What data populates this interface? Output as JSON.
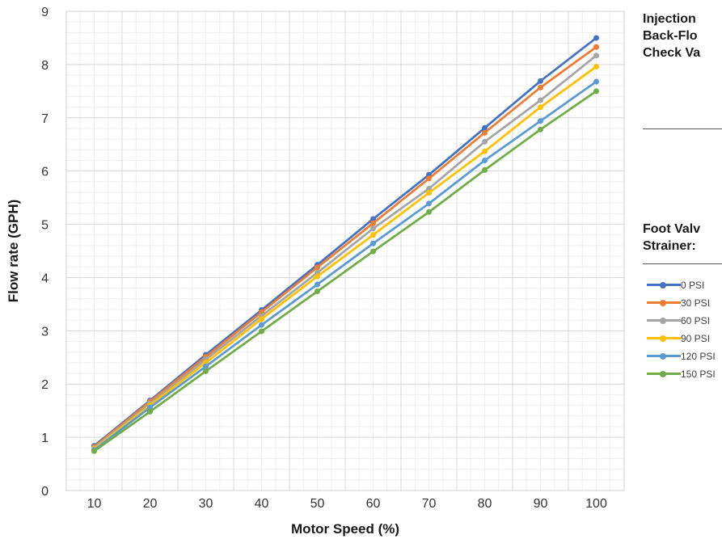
{
  "chart_data": {
    "type": "line",
    "title": "",
    "xlabel": "Motor Speed (%)",
    "ylabel": "Flow rate (GPH)",
    "categories": [
      10,
      20,
      30,
      40,
      50,
      60,
      70,
      80,
      90,
      100
    ],
    "ylim": [
      0,
      9
    ],
    "yticks": [
      0,
      1,
      2,
      3,
      4,
      5,
      6,
      7,
      8,
      9
    ],
    "grid": true,
    "legend_position": "right",
    "series": [
      {
        "name": "0 PSI",
        "color": "#4472C4",
        "values": [
          0.84,
          1.69,
          2.55,
          3.39,
          4.24,
          5.1,
          5.93,
          6.81,
          7.69,
          8.5
        ]
      },
      {
        "name": "30 PSI",
        "color": "#ED7D31",
        "values": [
          0.82,
          1.67,
          2.51,
          3.35,
          4.19,
          5.02,
          5.86,
          6.72,
          7.57,
          8.33
        ]
      },
      {
        "name": "60 PSI",
        "color": "#A5A5A5",
        "values": [
          0.8,
          1.63,
          2.46,
          3.28,
          4.09,
          4.92,
          5.67,
          6.55,
          7.33,
          8.17
        ]
      },
      {
        "name": "90 PSI",
        "color": "#FFC000",
        "values": [
          0.78,
          1.6,
          2.4,
          3.22,
          4.02,
          4.8,
          5.59,
          6.37,
          7.2,
          7.96
        ]
      },
      {
        "name": "120 PSI",
        "color": "#5B9BD5",
        "values": [
          0.76,
          1.56,
          2.33,
          3.11,
          3.87,
          4.64,
          5.39,
          6.2,
          6.94,
          7.68
        ]
      },
      {
        "name": "150 PSI",
        "color": "#70AD47",
        "values": [
          0.74,
          1.48,
          2.24,
          2.99,
          3.74,
          4.49,
          5.23,
          6.02,
          6.78,
          7.5
        ]
      }
    ]
  },
  "side_panel": {
    "injection_lines": [
      "Injection",
      "Back-Flo",
      "Check Va"
    ],
    "foot_valve_lines": [
      "Foot Valv",
      "Strainer:"
    ]
  }
}
